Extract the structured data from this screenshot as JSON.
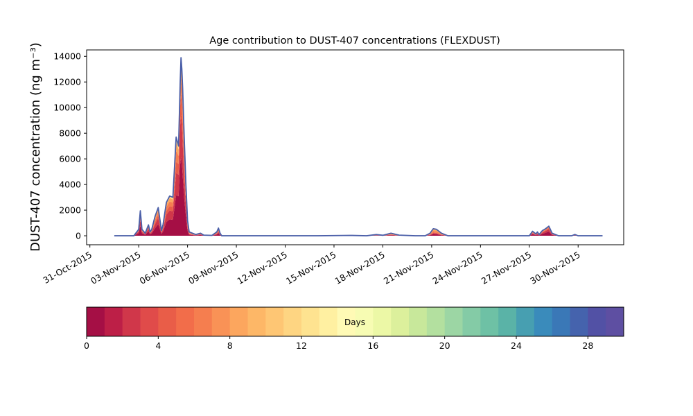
{
  "chart_data": {
    "type": "area",
    "title": "Age contribution to DUST-407 concentrations (FLEXDUST)",
    "ylabel": "DUST-407 concentration (ng m⁻³)",
    "xlabel": "",
    "ylim": [
      -700,
      14500
    ],
    "y_ticks": [
      0,
      2000,
      4000,
      6000,
      8000,
      10000,
      12000,
      14000
    ],
    "x_range_days": [
      -0.2,
      32.8
    ],
    "x_ticks": [
      {
        "day": 0,
        "label": "31-Oct-2015"
      },
      {
        "day": 3,
        "label": "03-Nov-2015"
      },
      {
        "day": 6,
        "label": "06-Nov-2015"
      },
      {
        "day": 9,
        "label": "09-Nov-2015"
      },
      {
        "day": 12,
        "label": "12-Nov-2015"
      },
      {
        "day": 15,
        "label": "15-Nov-2015"
      },
      {
        "day": 18,
        "label": "18-Nov-2015"
      },
      {
        "day": 21,
        "label": "21-Nov-2015"
      },
      {
        "day": 24,
        "label": "24-Nov-2015"
      },
      {
        "day": 27,
        "label": "27-Nov-2015"
      },
      {
        "day": 30,
        "label": "30-Nov-2015"
      }
    ],
    "series_total": {
      "x_days": [
        1.5,
        2.7,
        3.0,
        3.1,
        3.2,
        3.4,
        3.6,
        3.7,
        3.8,
        4.0,
        4.2,
        4.4,
        4.5,
        4.7,
        4.9,
        5.1,
        5.3,
        5.45,
        5.55,
        5.6,
        5.65,
        5.7,
        5.8,
        5.9,
        6.0,
        6.1,
        6.3,
        6.5,
        6.8,
        7.0,
        7.5,
        7.8,
        7.9,
        8.0,
        8.1,
        8.5,
        10.0,
        14.0,
        16.0,
        17.0,
        17.6,
        18.0,
        18.5,
        19.0,
        20.0,
        20.6,
        20.9,
        21.1,
        21.3,
        21.6,
        22.0,
        24.0,
        26.5,
        27.0,
        27.2,
        27.4,
        27.5,
        27.6,
        27.8,
        28.0,
        28.1,
        28.2,
        28.4,
        28.8,
        29.6,
        29.8,
        30.0,
        31.5
      ],
      "y": [
        0,
        0,
        500,
        1950,
        500,
        200,
        850,
        300,
        500,
        1500,
        2200,
        400,
        900,
        2600,
        3100,
        3000,
        7700,
        7000,
        12000,
        13900,
        13000,
        11500,
        7500,
        4000,
        1200,
        300,
        200,
        100,
        200,
        50,
        30,
        300,
        600,
        200,
        0,
        0,
        0,
        0,
        30,
        0,
        100,
        40,
        200,
        50,
        0,
        0,
        200,
        550,
        500,
        200,
        0,
        0,
        0,
        0,
        350,
        150,
        300,
        100,
        400,
        550,
        650,
        750,
        200,
        0,
        0,
        100,
        0,
        0
      ]
    },
    "series_young_share": [
      0,
      0,
      0.75,
      0.75,
      0.7,
      0.7,
      0.75,
      0.7,
      0.7,
      0.7,
      0.75,
      0.7,
      0.7,
      0.75,
      0.75,
      0.75,
      0.75,
      0.8,
      0.85,
      0.8,
      0.8,
      0.75,
      0.7,
      0.7,
      0.6,
      0.5,
      0.5,
      0.5,
      0.6,
      0.5,
      0.5,
      0.6,
      0.6,
      0.5,
      0.5,
      0.5,
      0.5,
      0.3,
      0.3,
      0.3,
      0.4,
      0.4,
      0.4,
      0.4,
      0.3,
      0.3,
      0.4,
      0.45,
      0.45,
      0.4,
      0.4,
      0.4,
      0.5,
      0.55,
      0.65,
      0.6,
      0.65,
      0.6,
      0.7,
      0.8,
      0.8,
      0.8,
      0.6,
      0.5,
      0.5,
      0.5,
      0.5,
      0.5
    ],
    "colorbar": {
      "label": "Days",
      "range": [
        0,
        30
      ],
      "ticks": [
        0,
        4,
        8,
        12,
        16,
        20,
        24,
        28
      ],
      "colors": [
        "#a50f45",
        "#bd1f47",
        "#d0374a",
        "#e04b4a",
        "#e95d48",
        "#f26d4a",
        "#f57e4f",
        "#f99256",
        "#fca65e",
        "#fdb767",
        "#fec674",
        "#fed582",
        "#fee390",
        "#fff0a1",
        "#fffab5",
        "#f7fcb3",
        "#ecf8a6",
        "#dcf09c",
        "#c8e89b",
        "#b3e09f",
        "#9cd6a4",
        "#84cba6",
        "#6ec1a5",
        "#5ab3a7",
        "#479fb1",
        "#3a8bbb",
        "#3a78b7",
        "#4563ad",
        "#5251a5",
        "#5e4fa2"
      ]
    },
    "total_line_color": "#4a5ea8",
    "grid": false,
    "legend": "none"
  }
}
